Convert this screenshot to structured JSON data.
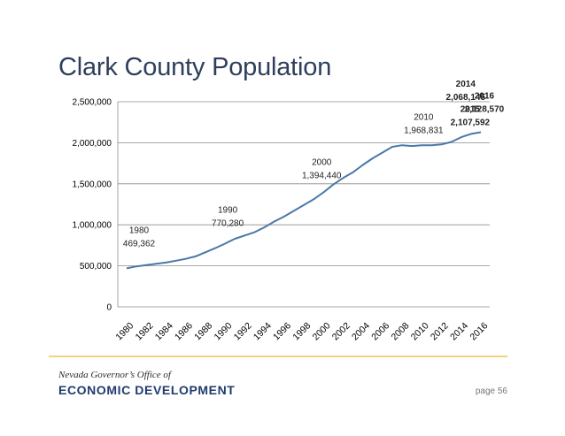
{
  "slide": {
    "title": "Clark County Population",
    "org_line1": "Nevada Governor’s Office of",
    "org_line2": "ECONOMIC DEVELOPMENT",
    "page": "page 56"
  },
  "colors": {
    "line": "#4a78a8",
    "title": "#2e3f5c",
    "divider": "#f3d27a",
    "brand": "#1f3b6e"
  },
  "chart_data": {
    "type": "line",
    "title": "",
    "xlabel": "",
    "ylabel": "",
    "x": [
      1980,
      1981,
      1982,
      1983,
      1984,
      1985,
      1986,
      1987,
      1988,
      1989,
      1990,
      1991,
      1992,
      1993,
      1994,
      1995,
      1996,
      1997,
      1998,
      1999,
      2000,
      2001,
      2002,
      2003,
      2004,
      2005,
      2006,
      2007,
      2008,
      2009,
      2010,
      2011,
      2012,
      2013,
      2014,
      2015,
      2016
    ],
    "series": [
      {
        "values": [
          469362,
          494000,
          510000,
          525000,
          540000,
          562000,
          585000,
          615000,
          665000,
          715000,
          770280,
          830000,
          870000,
          910000,
          970000,
          1040000,
          1100000,
          1170000,
          1240000,
          1310000,
          1394440,
          1490000,
          1570000,
          1640000,
          1730000,
          1810000,
          1880000,
          1950000,
          1970000,
          1960000,
          1968831,
          1970000,
          1980000,
          2010000,
          2068145,
          2107592,
          2128570
        ]
      }
    ],
    "ylim": [
      0,
      2500000
    ],
    "yticks": [
      0,
      500000,
      1000000,
      1500000,
      2000000,
      2500000
    ],
    "ytick_labels": [
      "0",
      "500,000",
      "1,000,000",
      "1,500,000",
      "2,000,000",
      "2,500,000"
    ],
    "xticks": [
      1980,
      1982,
      1984,
      1986,
      1988,
      1990,
      1992,
      1994,
      1996,
      1998,
      2000,
      2002,
      2004,
      2006,
      2008,
      2010,
      2012,
      2014,
      2016
    ],
    "xtick_labels": [
      "1980",
      "1982",
      "1984",
      "1986",
      "1988",
      "1990",
      "1992",
      "1994",
      "1996",
      "1998",
      "2000",
      "2002",
      "2004",
      "2006",
      "2008",
      "2010",
      "2012",
      "2014",
      "2016"
    ],
    "grid": true,
    "annotations": [
      {
        "year": "1980",
        "value": "469,362",
        "x": 1980,
        "y": 469362,
        "bold": false
      },
      {
        "year": "1990",
        "value": "770,280",
        "x": 1990,
        "y": 770280,
        "bold": false
      },
      {
        "year": "2000",
        "value": "1,394,440",
        "x": 2000,
        "y": 1394440,
        "bold": false
      },
      {
        "year": "2010",
        "value": "1,968,831",
        "x": 2010,
        "y": 1968831,
        "bold": false
      },
      {
        "year": "2014",
        "value": "2,068,145",
        "x": 2014,
        "y": 2068145,
        "bold": true
      },
      {
        "year": "2015",
        "value": "2,107,592",
        "x": 2015,
        "y": 2107592,
        "bold": true
      },
      {
        "year": "2016",
        "value": "2,128,570",
        "x": 2016,
        "y": 2128570,
        "bold": true
      }
    ]
  }
}
